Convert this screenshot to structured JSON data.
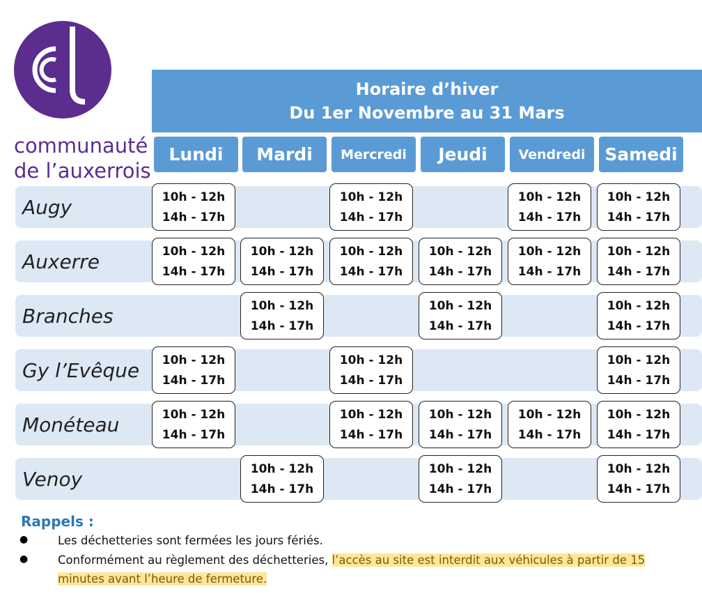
{
  "logo": {
    "line1": "communauté",
    "line2": "de l’auxerrois"
  },
  "header": {
    "title": "Horaire d’hiver",
    "subtitle": "Du 1er Novembre au 31 Mars"
  },
  "days": [
    "Lundi",
    "Mardi",
    "Mercredi",
    "Jeudi",
    "Vendredi",
    "Samedi"
  ],
  "rows": [
    {
      "name": "Augy",
      "slots": [
        [
          "10h - 12h",
          "14h - 17h"
        ],
        null,
        [
          "10h - 12h",
          "14h - 17h"
        ],
        null,
        [
          "10h - 12h",
          "14h - 17h"
        ],
        [
          "10h - 12h",
          "14h - 17h"
        ]
      ]
    },
    {
      "name": "Auxerre",
      "slots": [
        [
          "10h - 12h",
          "14h - 17h"
        ],
        [
          "10h - 12h",
          "14h - 17h"
        ],
        [
          "10h - 12h",
          "14h - 17h"
        ],
        [
          "10h - 12h",
          "14h - 17h"
        ],
        [
          "10h - 12h",
          "14h - 17h"
        ],
        [
          "10h - 12h",
          "14h - 17h"
        ]
      ]
    },
    {
      "name": "Branches",
      "slots": [
        null,
        [
          "10h - 12h",
          "14h - 17h"
        ],
        null,
        [
          "10h - 12h",
          "14h - 17h"
        ],
        null,
        [
          "10h - 12h",
          "14h - 17h"
        ]
      ]
    },
    {
      "name": "Gy l’Evêque",
      "slots": [
        [
          "10h - 12h",
          "14h - 17h"
        ],
        null,
        [
          "10h - 12h",
          "14h - 17h"
        ],
        null,
        null,
        [
          "10h - 12h",
          "14h - 17h"
        ]
      ]
    },
    {
      "name": "Monéteau",
      "slots": [
        [
          "10h - 12h",
          "14h - 17h"
        ],
        null,
        [
          "10h - 12h",
          "14h - 17h"
        ],
        [
          "10h - 12h",
          "14h - 17h"
        ],
        [
          "10h - 12h",
          "14h - 17h"
        ],
        [
          "10h - 12h",
          "14h - 17h"
        ]
      ]
    },
    {
      "name": "Venoy",
      "slots": [
        null,
        [
          "10h - 12h",
          "14h - 17h"
        ],
        null,
        [
          "10h - 12h",
          "14h - 17h"
        ],
        null,
        [
          "10h - 12h",
          "14h - 17h"
        ]
      ]
    }
  ],
  "reminders": {
    "title": "Rappels :",
    "items": [
      [
        "Les déchetteries sont fermées les jours fériés."
      ],
      [
        "Conformément au règlement des déchetteries,",
        "l’accès au site est interdit aux véhicules à partir de 15 minutes avant l’heure de fermeture."
      ]
    ]
  }
}
